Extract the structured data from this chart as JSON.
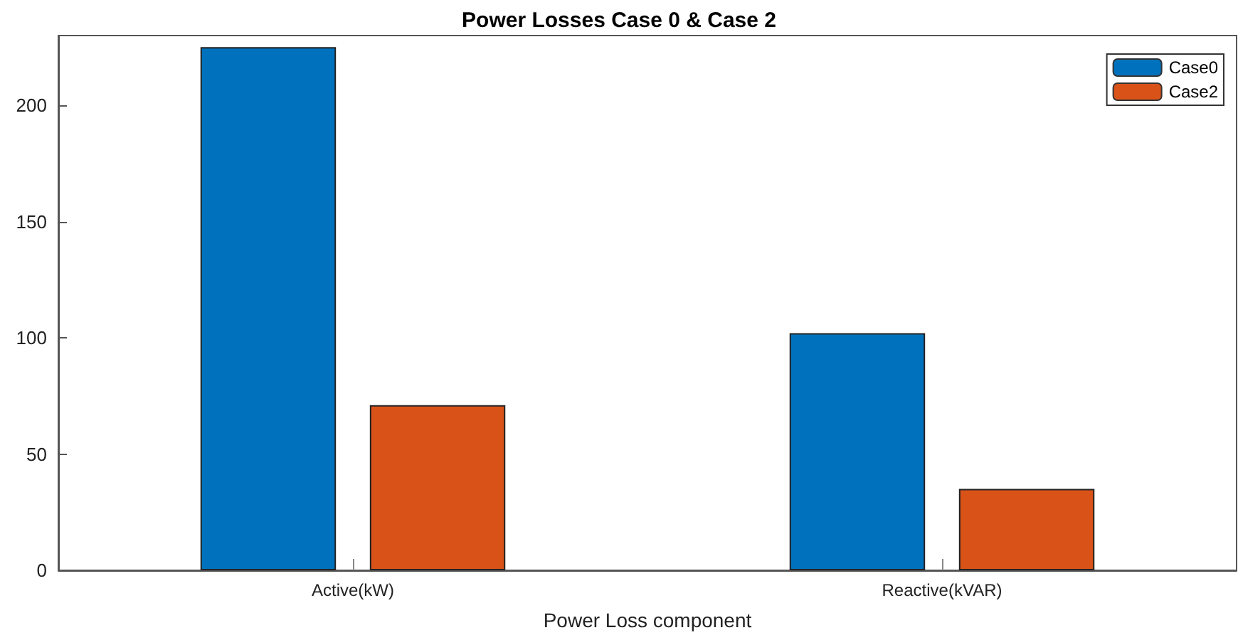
{
  "chart_data": {
    "type": "bar",
    "title": "Power Losses Case 0 & Case 2",
    "xlabel": "Power Loss component",
    "categories": [
      "Active(kW)",
      "Reactive(kVAR)"
    ],
    "series": [
      {
        "name": "Case0",
        "color": "#0072bd",
        "values": [
          225,
          102
        ]
      },
      {
        "name": "Case2",
        "color": "#d95319",
        "values": [
          71,
          35
        ]
      }
    ],
    "ylim": [
      0,
      230
    ],
    "yticks": [
      0,
      50,
      100,
      150,
      200
    ],
    "grid": false,
    "legend": "top right"
  }
}
